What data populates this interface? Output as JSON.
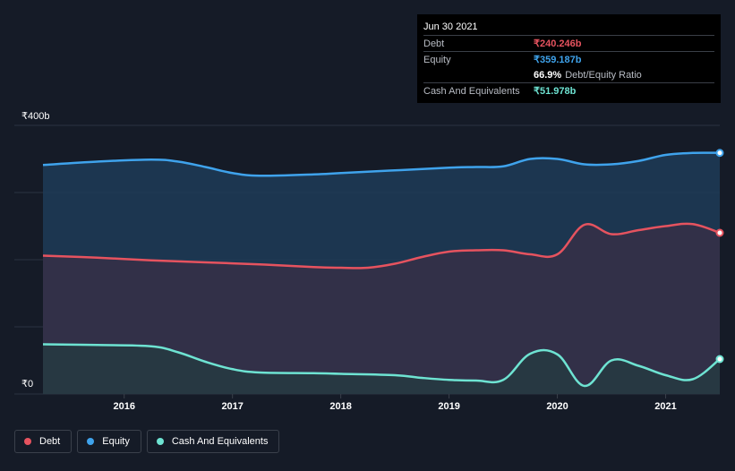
{
  "tooltip": {
    "date": "Jun 30 2021",
    "debt_label": "Debt",
    "debt_value": "₹240.246b",
    "equity_label": "Equity",
    "equity_value": "₹359.187b",
    "ratio_value": "66.9%",
    "ratio_label": "Debt/Equity Ratio",
    "cash_label": "Cash And Equivalents",
    "cash_value": "₹51.978b"
  },
  "legend": {
    "debt": "Debt",
    "equity": "Equity",
    "cash": "Cash And Equivalents"
  },
  "colors": {
    "debt": "#e6535f",
    "equity": "#3fa3ec",
    "cash": "#6ee3d2",
    "background": "#151b27"
  },
  "chart_data": {
    "type": "area",
    "y_top_label": "₹400b",
    "y_bottom_label": "₹0",
    "ylim": [
      0,
      400
    ],
    "x_ticks": [
      "2016",
      "2017",
      "2018",
      "2019",
      "2020",
      "2021"
    ],
    "xlim": [
      2015.25,
      2021.5
    ],
    "grid": true,
    "series": [
      {
        "name": "Equity",
        "unit": "₹b",
        "points": [
          [
            2015.25,
            341
          ],
          [
            2015.75,
            346
          ],
          [
            2016.25,
            349
          ],
          [
            2016.5,
            346
          ],
          [
            2016.75,
            338
          ],
          [
            2017.0,
            329
          ],
          [
            2017.25,
            325
          ],
          [
            2017.75,
            327
          ],
          [
            2018.0,
            329
          ],
          [
            2018.5,
            333
          ],
          [
            2019.0,
            337
          ],
          [
            2019.25,
            338
          ],
          [
            2019.5,
            339
          ],
          [
            2019.75,
            350
          ],
          [
            2020.0,
            350
          ],
          [
            2020.25,
            342
          ],
          [
            2020.5,
            342
          ],
          [
            2020.75,
            347
          ],
          [
            2021.0,
            356
          ],
          [
            2021.25,
            359
          ],
          [
            2021.5,
            359
          ]
        ]
      },
      {
        "name": "Debt",
        "unit": "₹b",
        "points": [
          [
            2015.25,
            206
          ],
          [
            2015.75,
            203
          ],
          [
            2016.25,
            199
          ],
          [
            2016.75,
            196
          ],
          [
            2017.25,
            193
          ],
          [
            2017.75,
            189
          ],
          [
            2018.0,
            188
          ],
          [
            2018.25,
            188
          ],
          [
            2018.5,
            194
          ],
          [
            2018.75,
            204
          ],
          [
            2019.0,
            212
          ],
          [
            2019.25,
            214
          ],
          [
            2019.5,
            214
          ],
          [
            2019.75,
            208
          ],
          [
            2020.0,
            208
          ],
          [
            2020.25,
            252
          ],
          [
            2020.5,
            238
          ],
          [
            2020.75,
            244
          ],
          [
            2021.0,
            250
          ],
          [
            2021.25,
            253
          ],
          [
            2021.5,
            240
          ]
        ]
      },
      {
        "name": "Cash And Equivalents",
        "unit": "₹b",
        "points": [
          [
            2015.25,
            74
          ],
          [
            2015.75,
            73
          ],
          [
            2016.25,
            71
          ],
          [
            2016.5,
            62
          ],
          [
            2016.75,
            48
          ],
          [
            2017.0,
            37
          ],
          [
            2017.25,
            32
          ],
          [
            2017.75,
            31
          ],
          [
            2018.0,
            30
          ],
          [
            2018.5,
            28
          ],
          [
            2018.75,
            24
          ],
          [
            2019.0,
            21
          ],
          [
            2019.25,
            20
          ],
          [
            2019.5,
            21
          ],
          [
            2019.75,
            60
          ],
          [
            2020.0,
            59
          ],
          [
            2020.25,
            12
          ],
          [
            2020.5,
            50
          ],
          [
            2020.75,
            42
          ],
          [
            2021.0,
            28
          ],
          [
            2021.25,
            22
          ],
          [
            2021.5,
            52
          ]
        ]
      }
    ]
  }
}
